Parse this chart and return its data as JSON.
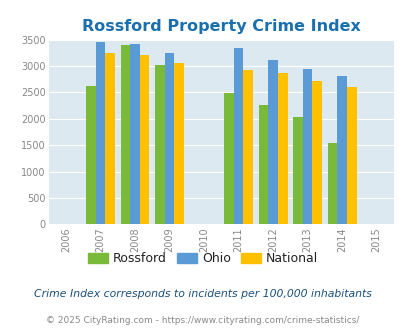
{
  "title": "Rossford Property Crime Index",
  "all_years": [
    2006,
    2007,
    2008,
    2009,
    2010,
    2011,
    2012,
    2013,
    2014,
    2015
  ],
  "data_years": [
    2007,
    2008,
    2009,
    2011,
    2012,
    2013,
    2014
  ],
  "rossford": [
    2620,
    3390,
    3020,
    2480,
    2260,
    2030,
    1540
  ],
  "ohio": [
    3450,
    3420,
    3250,
    3350,
    3120,
    2940,
    2810
  ],
  "national": [
    3250,
    3200,
    3050,
    2920,
    2870,
    2720,
    2600
  ],
  "rossford_color": "#7aba3a",
  "ohio_color": "#5b9bd5",
  "national_color": "#ffc000",
  "bg_color": "#dce9f0",
  "ylim": [
    0,
    3500
  ],
  "yticks": [
    0,
    500,
    1000,
    1500,
    2000,
    2500,
    3000,
    3500
  ],
  "subtitle": "Crime Index corresponds to incidents per 100,000 inhabitants",
  "footnote": "© 2025 CityRating.com - https://www.cityrating.com/crime-statistics/",
  "bar_width": 0.28,
  "xlim_left": 2005.5,
  "xlim_right": 2015.5,
  "legend_labels": [
    "Rossford",
    "Ohio",
    "National"
  ],
  "title_color": "#1a6faf",
  "tick_color": "#888888",
  "subtitle_color": "#1a4f7a",
  "footnote_color": "#888888"
}
